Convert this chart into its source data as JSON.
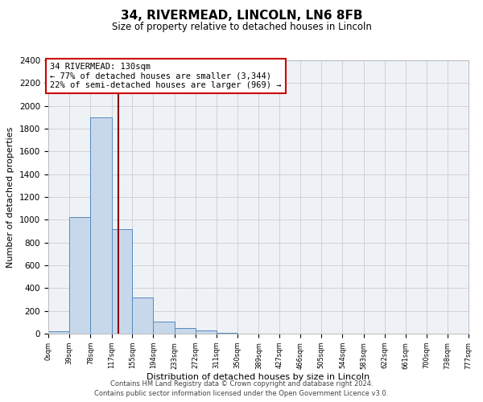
{
  "title": "34, RIVERMEAD, LINCOLN, LN6 8FB",
  "subtitle": "Size of property relative to detached houses in Lincoln",
  "xlabel": "Distribution of detached houses by size in Lincoln",
  "ylabel": "Number of detached properties",
  "bar_color": "#c8d8eb",
  "bar_edge_color": "#5588bb",
  "grid_color": "#cccccc",
  "background_color": "#eef2f7",
  "property_line_x": 130,
  "property_line_color": "#8b0000",
  "annotation_line1": "34 RIVERMEAD: 130sqm",
  "annotation_line2": "← 77% of detached houses are smaller (3,344)",
  "annotation_line3": "22% of semi-detached houses are larger (969) →",
  "annotation_box_edge": "#cc0000",
  "bin_edges": [
    0,
    39,
    78,
    117,
    155,
    194,
    233,
    272,
    311,
    350,
    389,
    427,
    466,
    505,
    544,
    583,
    622,
    661,
    700,
    738,
    777
  ],
  "bin_counts": [
    20,
    1025,
    1900,
    920,
    315,
    105,
    50,
    30,
    5,
    2,
    0,
    0,
    0,
    0,
    0,
    0,
    0,
    0,
    0,
    0
  ],
  "tick_labels": [
    "0sqm",
    "39sqm",
    "78sqm",
    "117sqm",
    "155sqm",
    "194sqm",
    "233sqm",
    "272sqm",
    "311sqm",
    "350sqm",
    "389sqm",
    "427sqm",
    "466sqm",
    "505sqm",
    "544sqm",
    "583sqm",
    "622sqm",
    "661sqm",
    "700sqm",
    "738sqm",
    "777sqm"
  ],
  "ylim": [
    0,
    2400
  ],
  "yticks": [
    0,
    200,
    400,
    600,
    800,
    1000,
    1200,
    1400,
    1600,
    1800,
    2000,
    2200,
    2400
  ],
  "footer_line1": "Contains HM Land Registry data © Crown copyright and database right 2024.",
  "footer_line2": "Contains public sector information licensed under the Open Government Licence v3.0."
}
